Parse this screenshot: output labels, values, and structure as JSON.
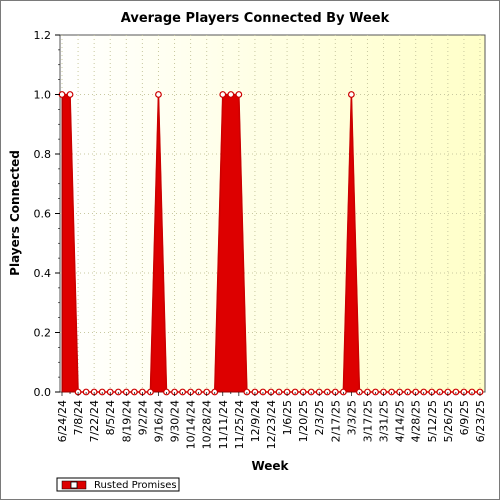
{
  "chart_data": {
    "type": "area",
    "title": "Average Players Connected By Week",
    "xlabel": "Week",
    "ylabel": "Players Connected",
    "ylim": [
      0,
      1.2
    ],
    "y_ticks": [
      "0.0",
      "0.2",
      "0.4",
      "0.6",
      "0.8",
      "1.0",
      "1.2"
    ],
    "x_tick_labels": [
      "6/24/24",
      "7/8/24",
      "7/22/24",
      "8/5/24",
      "8/19/24",
      "9/2/24",
      "9/16/24",
      "9/30/24",
      "10/14/24",
      "10/28/24",
      "11/11/24",
      "11/25/24",
      "12/9/24",
      "12/23/24",
      "1/6/25",
      "1/20/25",
      "2/3/25",
      "2/17/25",
      "3/3/25",
      "3/17/25",
      "3/31/25",
      "4/14/25",
      "4/28/25",
      "5/12/25",
      "5/26/25",
      "6/9/25",
      "6/23/25"
    ],
    "grid": true,
    "legend_position": "bottom-left",
    "series": [
      {
        "name": "Rusted Promises",
        "color": "#dd0000",
        "x": [
          "6/24/24",
          "7/1/24",
          "7/8/24",
          "7/15/24",
          "7/22/24",
          "7/29/24",
          "8/5/24",
          "8/12/24",
          "8/19/24",
          "8/26/24",
          "9/2/24",
          "9/9/24",
          "9/16/24",
          "9/23/24",
          "9/30/24",
          "10/7/24",
          "10/14/24",
          "10/21/24",
          "10/28/24",
          "11/4/24",
          "11/11/24",
          "11/18/24",
          "11/25/24",
          "12/2/24",
          "12/9/24",
          "12/16/24",
          "12/23/24",
          "12/30/24",
          "1/6/25",
          "1/13/25",
          "1/20/25",
          "1/27/25",
          "2/3/25",
          "2/10/25",
          "2/17/25",
          "2/24/25",
          "3/3/25",
          "3/10/25",
          "3/17/25",
          "3/24/25",
          "3/31/25",
          "4/7/25",
          "4/14/25",
          "4/21/25",
          "4/28/25",
          "5/5/25",
          "5/12/25",
          "5/19/25",
          "5/26/25",
          "6/2/25",
          "6/9/25",
          "6/16/25",
          "6/23/25"
        ],
        "values": [
          1,
          1,
          0,
          0,
          0,
          0,
          0,
          0,
          0,
          0,
          0,
          0,
          1,
          0,
          0,
          0,
          0,
          0,
          0,
          0,
          1,
          1,
          1,
          0,
          0,
          0,
          0,
          0,
          0,
          0,
          0,
          0,
          0,
          0,
          0,
          0,
          1,
          0,
          0,
          0,
          0,
          0,
          0,
          0,
          0,
          0,
          0,
          0,
          0,
          0,
          0,
          0,
          0
        ]
      }
    ]
  }
}
